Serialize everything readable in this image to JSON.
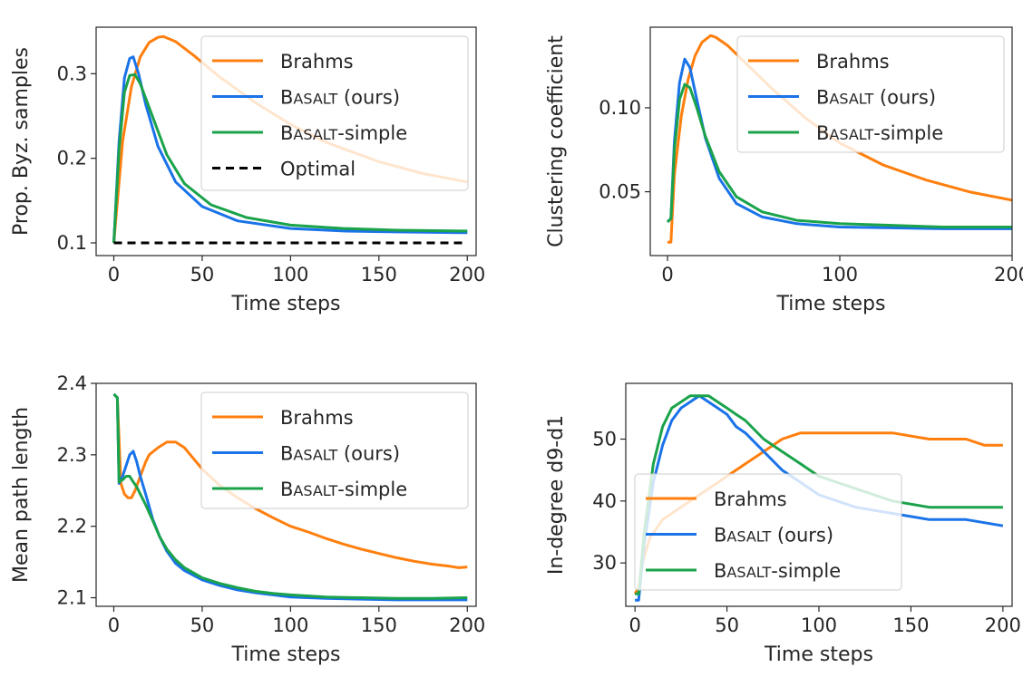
{
  "colors": {
    "brahms": "#ff7f0e",
    "basalt": "#1a73e8",
    "simple": "#1aa34a",
    "optimal": "#000000"
  },
  "chart_data": [
    {
      "type": "line",
      "xlabel": "Time steps",
      "ylabel": "Prop. Byz. samples",
      "xlim": [
        -10,
        205
      ],
      "ylim": [
        0.085,
        0.355
      ],
      "xticks": [
        0,
        50,
        100,
        150,
        200
      ],
      "yticks": [
        0.1,
        0.2,
        0.3
      ],
      "ytick_labels": [
        "0.1",
        "0.2",
        "0.3"
      ],
      "legend": "top-right",
      "series": [
        {
          "name": "Brahms",
          "color_key": "brahms",
          "x": [
            0,
            5,
            10,
            15,
            20,
            25,
            28,
            35,
            45,
            60,
            80,
            100,
            120,
            150,
            175,
            200
          ],
          "y": [
            0.1,
            0.22,
            0.285,
            0.32,
            0.337,
            0.343,
            0.344,
            0.338,
            0.322,
            0.296,
            0.266,
            0.24,
            0.219,
            0.196,
            0.182,
            0.172
          ]
        },
        {
          "name": "Basalt (ours)",
          "color_key": "basalt",
          "x": [
            0,
            3,
            6,
            9,
            11,
            14,
            18,
            25,
            35,
            50,
            70,
            100,
            130,
            160,
            200
          ],
          "y": [
            0.1,
            0.22,
            0.295,
            0.318,
            0.32,
            0.3,
            0.264,
            0.214,
            0.172,
            0.143,
            0.126,
            0.117,
            0.114,
            0.113,
            0.112
          ]
        },
        {
          "name": "Basalt-simple",
          "color_key": "simple",
          "x": [
            0,
            3,
            6,
            9,
            12,
            15,
            20,
            30,
            40,
            55,
            75,
            100,
            130,
            160,
            200
          ],
          "y": [
            0.1,
            0.21,
            0.278,
            0.298,
            0.299,
            0.288,
            0.26,
            0.204,
            0.17,
            0.145,
            0.13,
            0.121,
            0.117,
            0.115,
            0.114
          ]
        },
        {
          "name": "Optimal",
          "color_key": "optimal",
          "dashed": true,
          "x": [
            0,
            200
          ],
          "y": [
            0.1,
            0.1
          ]
        }
      ]
    },
    {
      "type": "line",
      "xlabel": "Time steps",
      "ylabel": "Clustering coefficient",
      "xlim": [
        -10,
        200
      ],
      "ylim": [
        0.012,
        0.148
      ],
      "xticks": [
        0,
        100,
        200
      ],
      "yticks": [
        0.05,
        0.1
      ],
      "ytick_labels": [
        "0.05",
        "0.10"
      ],
      "legend": "top-right",
      "series": [
        {
          "name": "Brahms",
          "color_key": "brahms",
          "x": [
            0,
            2,
            4,
            8,
            12,
            16,
            20,
            25,
            28,
            35,
            45,
            60,
            80,
            100,
            125,
            150,
            175,
            200
          ],
          "y": [
            0.02,
            0.02,
            0.06,
            0.095,
            0.117,
            0.131,
            0.139,
            0.143,
            0.142,
            0.137,
            0.127,
            0.112,
            0.094,
            0.079,
            0.066,
            0.057,
            0.05,
            0.045
          ]
        },
        {
          "name": "Basalt (ours)",
          "color_key": "basalt",
          "x": [
            0,
            2,
            4,
            7,
            10,
            13,
            17,
            22,
            30,
            40,
            55,
            75,
            100,
            130,
            160,
            200
          ],
          "y": [
            0.032,
            0.034,
            0.08,
            0.115,
            0.129,
            0.124,
            0.105,
            0.082,
            0.058,
            0.043,
            0.035,
            0.031,
            0.029,
            0.0285,
            0.028,
            0.028
          ]
        },
        {
          "name": "Basalt-simple",
          "color_key": "simple",
          "x": [
            0,
            2,
            4,
            7,
            10,
            13,
            17,
            22,
            30,
            40,
            55,
            75,
            100,
            130,
            160,
            200
          ],
          "y": [
            0.032,
            0.034,
            0.075,
            0.105,
            0.114,
            0.112,
            0.1,
            0.083,
            0.062,
            0.047,
            0.038,
            0.033,
            0.031,
            0.03,
            0.029,
            0.029
          ]
        }
      ]
    },
    {
      "type": "line",
      "xlabel": "Time steps",
      "ylabel": "Mean path length",
      "xlim": [
        -10,
        205
      ],
      "ylim": [
        2.088,
        2.4
      ],
      "xticks": [
        0,
        50,
        100,
        150,
        200
      ],
      "yticks": [
        2.1,
        2.2,
        2.3,
        2.4
      ],
      "ytick_labels": [
        "2.1",
        "2.2",
        "2.3",
        "2.4"
      ],
      "legend": "top-right",
      "series": [
        {
          "name": "Brahms",
          "color_key": "brahms",
          "x": [
            0,
            2,
            4,
            6,
            8,
            10,
            12,
            15,
            18,
            20,
            25,
            30,
            35,
            40,
            45,
            50,
            60,
            70,
            80,
            90,
            100,
            110,
            120,
            130,
            140,
            150,
            160,
            170,
            180,
            190,
            195,
            200
          ],
          "y": [
            2.385,
            2.38,
            2.26,
            2.245,
            2.24,
            2.24,
            2.25,
            2.27,
            2.29,
            2.3,
            2.31,
            2.318,
            2.318,
            2.31,
            2.295,
            2.28,
            2.257,
            2.24,
            2.225,
            2.212,
            2.2,
            2.192,
            2.183,
            2.175,
            2.168,
            2.162,
            2.156,
            2.151,
            2.147,
            2.144,
            2.142,
            2.143
          ]
        },
        {
          "name": "Basalt (ours)",
          "color_key": "basalt",
          "x": [
            0,
            2,
            3,
            5,
            7,
            9,
            11,
            13,
            15,
            18,
            22,
            26,
            30,
            35,
            40,
            50,
            60,
            70,
            80,
            90,
            100,
            120,
            140,
            160,
            180,
            200
          ],
          "y": [
            2.385,
            2.38,
            2.26,
            2.27,
            2.285,
            2.3,
            2.305,
            2.29,
            2.27,
            2.245,
            2.21,
            2.185,
            2.165,
            2.148,
            2.138,
            2.125,
            2.117,
            2.111,
            2.107,
            2.104,
            2.101,
            2.099,
            2.098,
            2.097,
            2.097,
            2.097
          ]
        },
        {
          "name": "Basalt-simple",
          "color_key": "simple",
          "x": [
            0,
            2,
            3,
            5,
            7,
            9,
            11,
            13,
            15,
            18,
            22,
            26,
            30,
            35,
            40,
            50,
            60,
            70,
            80,
            90,
            100,
            120,
            140,
            160,
            180,
            200
          ],
          "y": [
            2.385,
            2.38,
            2.262,
            2.265,
            2.27,
            2.27,
            2.262,
            2.255,
            2.245,
            2.23,
            2.208,
            2.185,
            2.168,
            2.153,
            2.142,
            2.128,
            2.12,
            2.114,
            2.109,
            2.106,
            2.104,
            2.101,
            2.1,
            2.099,
            2.099,
            2.1
          ]
        }
      ]
    },
    {
      "type": "line",
      "xlabel": "Time steps",
      "ylabel": "In-degree d9-d1",
      "xlim": [
        -5,
        205
      ],
      "ylim": [
        23,
        59
      ],
      "xticks": [
        0,
        50,
        100,
        150,
        200
      ],
      "yticks": [
        30,
        40,
        50
      ],
      "ytick_labels": [
        "30",
        "40",
        "50"
      ],
      "legend": "lower-left",
      "series": [
        {
          "name": "Brahms",
          "color_key": "brahms",
          "x": [
            0,
            2,
            4,
            8,
            15,
            20,
            30,
            40,
            50,
            60,
            70,
            80,
            90,
            100,
            120,
            140,
            160,
            180,
            190,
            200
          ],
          "y": [
            25,
            26,
            30,
            34,
            37,
            38,
            40,
            42,
            44,
            46,
            48,
            50,
            51,
            51,
            51,
            51,
            50,
            50,
            49,
            49
          ]
        },
        {
          "name": "Basalt (ours)",
          "color_key": "basalt",
          "x": [
            0,
            2,
            5,
            10,
            15,
            20,
            25,
            30,
            35,
            40,
            45,
            50,
            55,
            60,
            70,
            80,
            90,
            100,
            120,
            140,
            160,
            180,
            200
          ],
          "y": [
            24,
            24,
            33,
            43,
            49,
            53,
            55,
            56,
            57,
            56,
            55,
            54,
            52,
            51,
            48,
            45,
            43,
            41,
            39,
            38,
            37,
            37,
            36
          ]
        },
        {
          "name": "Basalt-simple",
          "color_key": "simple",
          "x": [
            0,
            2,
            5,
            10,
            15,
            20,
            25,
            30,
            35,
            40,
            45,
            50,
            55,
            60,
            70,
            80,
            90,
            100,
            120,
            140,
            160,
            180,
            200
          ],
          "y": [
            25,
            25,
            35,
            46,
            52,
            55,
            56,
            57,
            57,
            57,
            56,
            55,
            54,
            53,
            50,
            48,
            46,
            44,
            42,
            40,
            39,
            39,
            39
          ]
        }
      ]
    }
  ],
  "legends": [
    {
      "items": [
        {
          "label": "Brahms",
          "sc": "",
          "tail": "",
          "color_key": "brahms",
          "dashed": false
        },
        {
          "label": "B",
          "sc": "ASALT",
          "tail": " (ours)",
          "color_key": "basalt",
          "dashed": false
        },
        {
          "label": "B",
          "sc": "ASALT",
          "tail": "-simple",
          "color_key": "simple",
          "dashed": false
        },
        {
          "label": "Optimal",
          "sc": "",
          "tail": "",
          "color_key": "optimal",
          "dashed": true
        }
      ]
    },
    {
      "items": [
        {
          "label": "Brahms",
          "sc": "",
          "tail": "",
          "color_key": "brahms",
          "dashed": false
        },
        {
          "label": "B",
          "sc": "ASALT",
          "tail": " (ours)",
          "color_key": "basalt",
          "dashed": false
        },
        {
          "label": "B",
          "sc": "ASALT",
          "tail": "-simple",
          "color_key": "simple",
          "dashed": false
        }
      ]
    },
    {
      "items": [
        {
          "label": "Brahms",
          "sc": "",
          "tail": "",
          "color_key": "brahms",
          "dashed": false
        },
        {
          "label": "B",
          "sc": "ASALT",
          "tail": " (ours)",
          "color_key": "basalt",
          "dashed": false
        },
        {
          "label": "B",
          "sc": "ASALT",
          "tail": "-simple",
          "color_key": "simple",
          "dashed": false
        }
      ]
    },
    {
      "items": [
        {
          "label": "Brahms",
          "sc": "",
          "tail": "",
          "color_key": "brahms",
          "dashed": false
        },
        {
          "label": "B",
          "sc": "ASALT",
          "tail": " (ours)",
          "color_key": "basalt",
          "dashed": false
        },
        {
          "label": "B",
          "sc": "ASALT",
          "tail": "-simple",
          "color_key": "simple",
          "dashed": false
        }
      ]
    }
  ]
}
